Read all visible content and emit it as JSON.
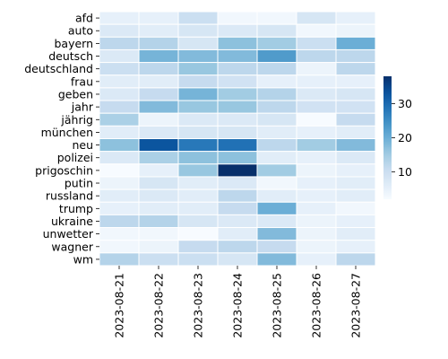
{
  "chart_data": {
    "type": "heatmap",
    "title": "",
    "xlabel": "",
    "ylabel": "",
    "x_categories": [
      "2023-08-21",
      "2023-08-22",
      "2023-08-23",
      "2023-08-24",
      "2023-08-25",
      "2023-08-26",
      "2023-08-27"
    ],
    "y_categories": [
      "afd",
      "auto",
      "bayern",
      "deutsch",
      "deutschland",
      "frau",
      "geben",
      "jahr",
      "jährig",
      "münchen",
      "neu",
      "polizei",
      "prigoschin",
      "putin",
      "russland",
      "trump",
      "ukraine",
      "unwetter",
      "wagner",
      "wm"
    ],
    "values": [
      [
        5,
        5,
        10,
        3,
        3,
        8,
        5
      ],
      [
        7,
        6,
        8,
        7,
        8,
        3,
        4
      ],
      [
        12,
        13,
        8,
        17,
        15,
        10,
        20
      ],
      [
        7,
        19,
        18,
        18,
        23,
        12,
        12
      ],
      [
        10,
        12,
        16,
        12,
        12,
        4,
        12
      ],
      [
        6,
        6,
        11,
        9,
        5,
        5,
        5
      ],
      [
        7,
        11,
        19,
        15,
        13,
        7,
        8
      ],
      [
        11,
        18,
        16,
        16,
        12,
        9,
        9
      ],
      [
        14,
        4,
        7,
        7,
        8,
        2,
        11
      ],
      [
        6,
        7,
        8,
        8,
        6,
        5,
        6
      ],
      [
        17,
        33,
        28,
        29,
        12,
        15,
        18
      ],
      [
        7,
        14,
        17,
        17,
        6,
        5,
        7
      ],
      [
        2,
        5,
        16,
        38,
        15,
        4,
        5
      ],
      [
        4,
        8,
        6,
        7,
        3,
        5,
        6
      ],
      [
        6,
        7,
        6,
        12,
        6,
        5,
        6
      ],
      [
        5,
        6,
        6,
        11,
        20,
        5,
        3
      ],
      [
        12,
        13,
        8,
        7,
        7,
        4,
        5
      ],
      [
        3,
        3,
        2,
        6,
        18,
        4,
        6
      ],
      [
        3,
        4,
        11,
        12,
        11,
        4,
        5
      ],
      [
        13,
        10,
        10,
        8,
        18,
        5,
        12
      ]
    ],
    "colormap": "Blues",
    "vmin": 2,
    "vmax": 38,
    "colorbar_ticks": [
      10,
      20,
      30
    ],
    "grid": false,
    "cell_border_color": "#ffffff"
  }
}
